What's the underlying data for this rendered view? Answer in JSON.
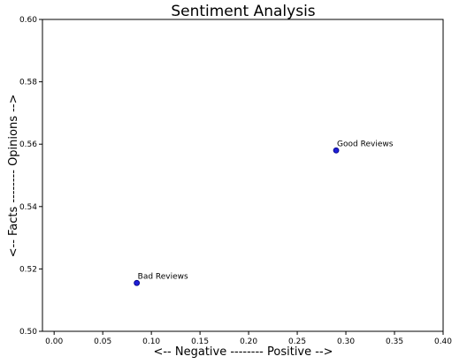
{
  "chart_data": {
    "type": "scatter",
    "title": "Sentiment Analysis",
    "xlabel": "<-- Negative -------- Positive -->",
    "ylabel": "<-- Facts -------- Opinions -->",
    "xlim": [
      -0.012,
      0.4
    ],
    "ylim": [
      0.5,
      0.6
    ],
    "x_ticks": [
      0.0,
      0.05,
      0.1,
      0.15,
      0.2,
      0.25,
      0.3,
      0.35,
      0.4
    ],
    "x_tick_labels": [
      "0.00",
      "0.05",
      "0.10",
      "0.15",
      "0.20",
      "0.25",
      "0.30",
      "0.35",
      "0.40"
    ],
    "y_ticks": [
      0.5,
      0.52,
      0.54,
      0.56,
      0.58,
      0.6
    ],
    "y_tick_labels": [
      "0.50",
      "0.52",
      "0.54",
      "0.56",
      "0.58",
      "0.60"
    ],
    "grid": false,
    "points": [
      {
        "label": "Good Reviews",
        "x": 0.29,
        "y": 0.558
      },
      {
        "label": "Bad Reviews",
        "x": 0.085,
        "y": 0.5155
      }
    ],
    "marker_color": "#1f1fd6",
    "marker_edge_color": "#000080"
  }
}
